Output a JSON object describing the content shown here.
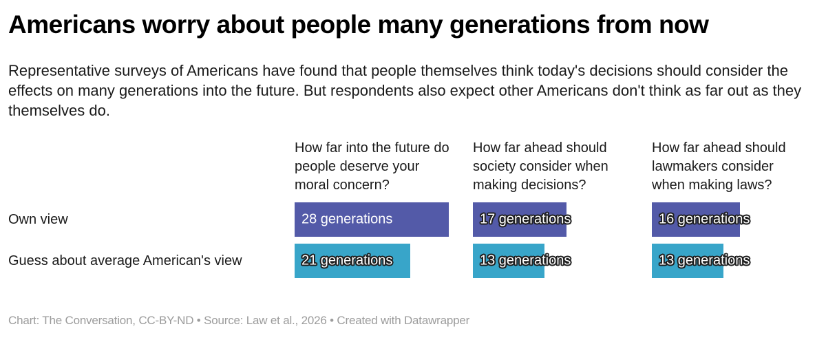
{
  "header": {
    "title": "Americans worry about people many generations from now",
    "description": "Representative surveys of Americans have found that people themselves think today's decisions should consider the effects on many generations into the future. But respondents also expect other Americans don't think as far out as they themselves do."
  },
  "chart_data": {
    "type": "bar",
    "orientation": "horizontal",
    "unit": "generations",
    "grid": false,
    "legend_position": "none",
    "axis_hidden": true,
    "rows": [
      {
        "label": "Own view",
        "color": "#535aa8"
      },
      {
        "label": "Guess about average American's view",
        "color": "#38a5c9"
      }
    ],
    "columns": [
      {
        "question": "How far into the future do people deserve your moral concern?",
        "own_view": {
          "value": 28,
          "label": "28 generations"
        },
        "guess": {
          "value": 21,
          "label": "21 generations"
        }
      },
      {
        "question": "How far ahead should society consider when making decisions?",
        "own_view": {
          "value": 17,
          "label": "17 generations"
        },
        "guess": {
          "value": 13,
          "label": "13 generations"
        }
      },
      {
        "question": "How far ahead should lawmakers consider when making laws?",
        "own_view": {
          "value": 16,
          "label": "16 generations"
        },
        "guess": {
          "value": 13,
          "label": "13 generations"
        }
      }
    ]
  },
  "footer": {
    "credit": "Chart: The Conversation, CC-BY-ND • Source: Law et al., 2026 • Created with Datawrapper"
  }
}
